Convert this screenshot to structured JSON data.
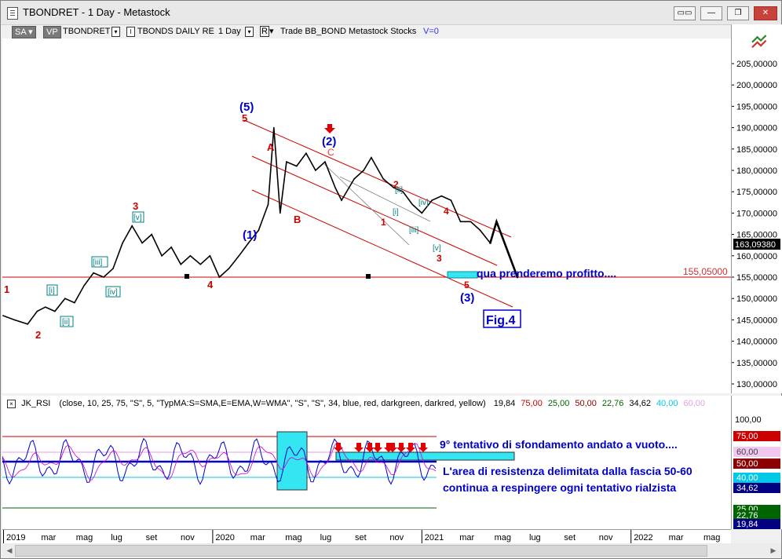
{
  "window": {
    "title": "TBONDRET - 1 Day - Metastock",
    "buttons": [
      "▭▭",
      "—",
      "❐",
      "✕"
    ]
  },
  "toolbar": {
    "sa": "SA",
    "vp": "VP",
    "symbol": "TBONDRET",
    "series": "TBONDS DAILY RE",
    "period": "1 Day",
    "r_label": "R",
    "info": "Trade  BB_BOND  Metastock  Stocks",
    "volume": "V=0",
    "dropdown": "▾",
    "symbol_icon": "I"
  },
  "colors": {
    "brand": "#0000cc",
    "accent": "#cc0000",
    "cyan": "#33e6f2",
    "fig_border": "#0000cc"
  },
  "price_axis": {
    "labels": [
      "205,00000",
      "200,00000",
      "195,00000",
      "190,00000",
      "185,00000",
      "180,00000",
      "175,00000",
      "170,00000",
      "165,00000",
      "160,00000",
      "155,00000",
      "150,00000",
      "145,00000",
      "140,00000",
      "135,00000",
      "130,00000"
    ],
    "current_price": "163,09380"
  },
  "support_line_label": "155,05000",
  "annotations": {
    "profit_target": "qua prenderemo profitto....",
    "figure_label": "Fig.4",
    "rsi_note_1": "9° tentativo di sfondamento andato a vuoto....",
    "rsi_note_2": "L'area di resistenza delimitata dalla fascia 50-60",
    "rsi_note_3": "continua a respingere ogni tentativo rialzista"
  },
  "wave_labels": {
    "w1_start": "1",
    "w2_low": "2",
    "w3_top": "3",
    "w4_low": "4",
    "w5_top": "5",
    "big5": "(5)",
    "big1": "(1)",
    "big2": "(2)",
    "big3": "(3)",
    "A": "A",
    "B": "B",
    "C": "C",
    "sub_i": "[i]",
    "sub_ii": "[ii]",
    "sub_iii": "[iii]",
    "sub_iv": "[iv]",
    "sub_v": "[v]",
    "red1": "1",
    "red2": "2",
    "red3": "3",
    "red4": "4",
    "red5": "5"
  },
  "rsi": {
    "label": "JK_RSI",
    "params": "(close,  10,  25,  75,  \"S\",  5,  \"TypMA:S=SMA,E=EMA,W=WMA\",  \"S\",  \"S\",  34,  blue,  red,  darkgreen,  darkred,  yellow)",
    "values": [
      {
        "text": "19,84",
        "color": "#000000"
      },
      {
        "text": "75,00",
        "color": "#cc0000"
      },
      {
        "text": "25,00",
        "color": "#006400"
      },
      {
        "text": "50,00",
        "color": "#8b0000"
      },
      {
        "text": "22,76",
        "color": "#006400"
      },
      {
        "text": "34,62",
        "color": "#000000"
      },
      {
        "text": "40,00",
        "color": "#00c8e6"
      },
      {
        "text": "60,00",
        "color": "#e6a0e6"
      }
    ],
    "axis": {
      "label_100": "100,00",
      "l75": "75,00",
      "l60": "60,00",
      "l50": "50,00",
      "l40": "40,00",
      "l34": "34,62",
      "l25": "25,00",
      "l22": "22,76",
      "l19": "19,84"
    }
  },
  "date_axis": [
    {
      "label": "2019",
      "boxed": true
    },
    {
      "label": "mar"
    },
    {
      "label": "mag"
    },
    {
      "label": "lug"
    },
    {
      "label": "set"
    },
    {
      "label": "nov"
    },
    {
      "label": "2020",
      "boxed": true
    },
    {
      "label": "mar"
    },
    {
      "label": "mag"
    },
    {
      "label": "lug"
    },
    {
      "label": "set"
    },
    {
      "label": "nov"
    },
    {
      "label": "2021",
      "boxed": true
    },
    {
      "label": "mar"
    },
    {
      "label": "mag"
    },
    {
      "label": "lug"
    },
    {
      "label": "set"
    },
    {
      "label": "nov"
    },
    {
      "label": "2022",
      "boxed": true
    },
    {
      "label": "mar"
    },
    {
      "label": "mag"
    }
  ],
  "chart_data": {
    "type": "line",
    "series": [
      {
        "values": [
          [
            "2019-01-02",
            146
          ],
          [
            "2019-01-20",
            145
          ],
          [
            "2019-02-10",
            144
          ],
          [
            "2019-02-25",
            147
          ],
          [
            "2019-03-10",
            148
          ],
          [
            "2019-03-25",
            147
          ],
          [
            "2019-04-10",
            150
          ],
          [
            "2019-04-25",
            149
          ],
          [
            "2019-05-10",
            153
          ],
          [
            "2019-05-25",
            156
          ],
          [
            "2019-06-10",
            155
          ],
          [
            "2019-06-25",
            157
          ],
          [
            "2019-07-10",
            163
          ],
          [
            "2019-07-25",
            167
          ],
          [
            "2019-08-10",
            163
          ],
          [
            "2019-08-25",
            165
          ],
          [
            "2019-09-10",
            160
          ],
          [
            "2019-09-25",
            162
          ],
          [
            "2019-10-10",
            158
          ],
          [
            "2019-10-25",
            160
          ],
          [
            "2019-11-10",
            158
          ],
          [
            "2019-11-25",
            160
          ],
          [
            "2019-12-10",
            155
          ],
          [
            "2019-12-25",
            157
          ],
          [
            "2020-01-10",
            160
          ],
          [
            "2020-01-25",
            163
          ],
          [
            "2020-02-10",
            166
          ],
          [
            "2020-02-25",
            172
          ],
          [
            "2020-03-05",
            190
          ],
          [
            "2020-03-15",
            170
          ],
          [
            "2020-03-25",
            182
          ],
          [
            "2020-04-10",
            181
          ],
          [
            "2020-04-25",
            184
          ],
          [
            "2020-05-10",
            180
          ],
          [
            "2020-05-25",
            182
          ],
          [
            "2020-06-10",
            176
          ],
          [
            "2020-06-20",
            173
          ],
          [
            "2020-07-10",
            178
          ],
          [
            "2020-07-25",
            180
          ],
          [
            "2020-08-06",
            183
          ],
          [
            "2020-08-25",
            178
          ],
          [
            "2020-09-10",
            176
          ],
          [
            "2020-09-25",
            175
          ],
          [
            "2020-10-10",
            172
          ],
          [
            "2020-10-25",
            170
          ],
          [
            "2020-11-10",
            173
          ],
          [
            "2020-11-25",
            174
          ],
          [
            "2020-12-10",
            173
          ],
          [
            "2020-12-25",
            168
          ],
          [
            "2021-01-10",
            168
          ],
          [
            "2021-01-25",
            166
          ],
          [
            "2021-02-10",
            163
          ]
        ]
      },
      {
        "values": [
          [
            "2021-02-10",
            163
          ],
          [
            "2021-02-20",
            168
          ],
          [
            "2021-03-25",
            155
          ]
        ]
      }
    ],
    "ylim": [
      125,
      210
    ],
    "xlim": [
      "2019-01-01",
      "2022-06-01"
    ],
    "support_level": 155.05
  }
}
